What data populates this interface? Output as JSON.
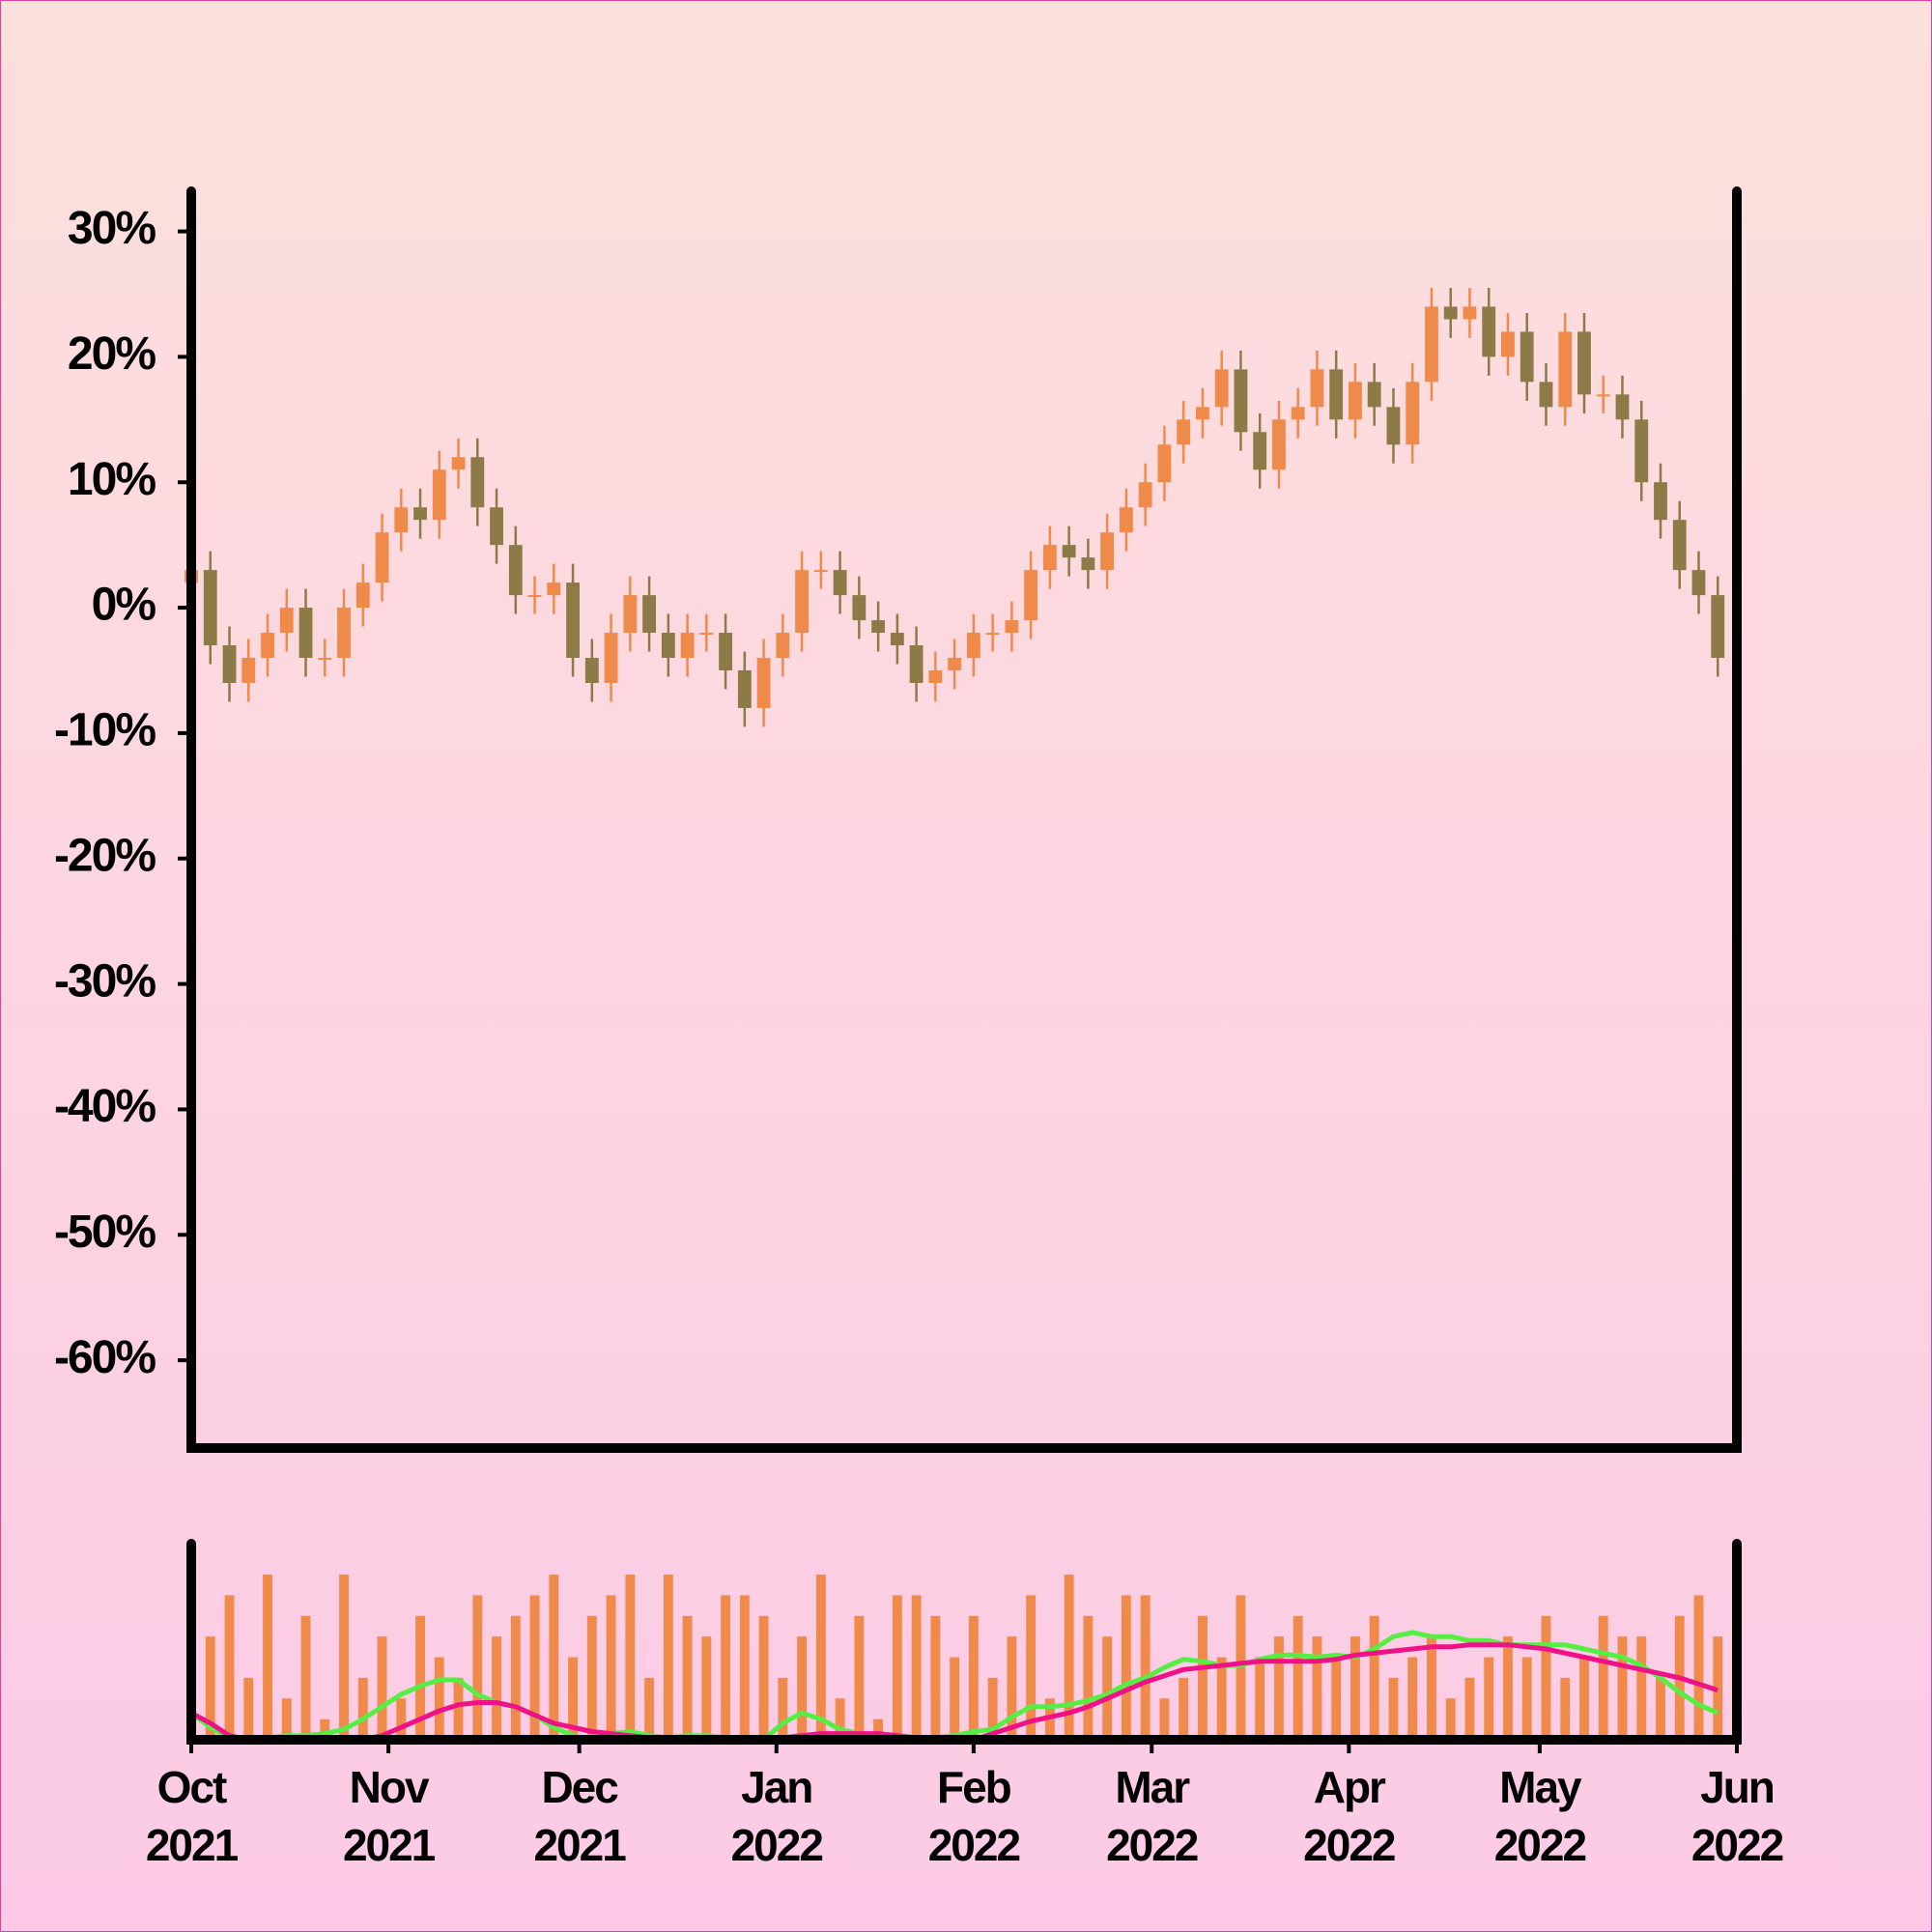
{
  "chart_data": [
    {
      "type": "candlestick",
      "x": [
        0,
        3,
        6,
        9,
        12,
        15,
        18,
        21,
        24,
        27,
        30,
        33,
        36,
        39,
        42,
        45,
        48,
        51,
        54,
        57,
        60,
        63,
        66,
        69,
        72,
        75,
        78,
        81,
        84,
        87,
        90,
        93,
        96,
        99,
        102,
        105,
        108,
        111,
        114,
        117,
        120,
        123,
        126,
        129,
        132,
        135,
        138,
        141,
        144,
        147,
        150,
        153,
        156,
        159,
        162,
        165,
        168,
        171,
        174,
        177,
        180,
        183,
        186,
        189,
        192,
        195,
        198,
        201,
        204,
        207,
        210,
        213,
        216,
        219,
        222,
        225,
        228,
        231,
        234,
        237,
        240
      ],
      "open": [
        2,
        3,
        -3,
        -6,
        -4,
        -2,
        0,
        -4,
        -4,
        0,
        2,
        6,
        8,
        7,
        11,
        12,
        8,
        5,
        1,
        1,
        2,
        -4,
        -6,
        -2,
        1,
        -2,
        -4,
        -2,
        -2,
        -5,
        -8,
        -4,
        -2,
        3,
        3,
        1,
        -1,
        -2,
        -3,
        -6,
        -5,
        -4,
        -2,
        -2,
        -1,
        3,
        5,
        4,
        3,
        6,
        8,
        10,
        13,
        15,
        16,
        19,
        14,
        11,
        15,
        16,
        19,
        15,
        18,
        16,
        13,
        18,
        24,
        23,
        24,
        20,
        22,
        18,
        16,
        22,
        17,
        17,
        15,
        10,
        7,
        3,
        1
      ],
      "high": [
        4.5,
        4.5,
        -1.5,
        -2.5,
        -0.5,
        1.5,
        1.5,
        -2.5,
        1.5,
        3.5,
        7.5,
        9.5,
        9.5,
        12.5,
        13.5,
        13.5,
        9.5,
        6.5,
        2.5,
        3.5,
        3.5,
        -2.5,
        -0.5,
        2.5,
        2.5,
        -0.5,
        -0.5,
        -0.5,
        -0.5,
        -3.5,
        -2.5,
        -0.5,
        4.5,
        4.5,
        4.5,
        2.5,
        0.5,
        -0.5,
        -1.5,
        -3.5,
        -2.5,
        -0.5,
        -0.5,
        0.5,
        4.5,
        6.5,
        6.5,
        5.5,
        7.5,
        9.5,
        11.5,
        14.5,
        16.5,
        17.5,
        20.5,
        20.5,
        15.5,
        16.5,
        17.5,
        20.5,
        20.5,
        19.5,
        19.5,
        17.5,
        19.5,
        25.5,
        25.5,
        25.5,
        25.5,
        23.5,
        23.5,
        19.5,
        23.5,
        23.5,
        18.5,
        18.5,
        16.5,
        11.5,
        8.5,
        4.5,
        2.5
      ],
      "low": [
        0.5,
        -4.5,
        -7.5,
        -7.5,
        -5.5,
        -3.5,
        -5.5,
        -5.5,
        -5.5,
        -1.5,
        0.5,
        4.5,
        5.5,
        5.5,
        9.5,
        6.5,
        3.5,
        -0.5,
        -0.5,
        -0.5,
        -5.5,
        -7.5,
        -7.5,
        -3.5,
        -3.5,
        -5.5,
        -5.5,
        -3.5,
        -6.5,
        -9.5,
        -9.5,
        -5.5,
        -3.5,
        1.5,
        -0.5,
        -2.5,
        -3.5,
        -4.5,
        -7.5,
        -7.5,
        -6.5,
        -5.5,
        -3.5,
        -3.5,
        -2.5,
        1.5,
        2.5,
        1.5,
        1.5,
        4.5,
        6.5,
        8.5,
        11.5,
        13.5,
        14.5,
        12.5,
        9.5,
        9.5,
        13.5,
        14.5,
        13.5,
        13.5,
        14.5,
        11.5,
        11.5,
        16.5,
        21.5,
        21.5,
        18.5,
        18.5,
        16.5,
        14.5,
        14.5,
        15.5,
        15.5,
        13.5,
        8.5,
        5.5,
        1.5,
        -0.5,
        -5.5
      ],
      "close": [
        3,
        -3,
        -6,
        -4,
        -2,
        0,
        -4,
        -4,
        0,
        2,
        6,
        8,
        7,
        11,
        12,
        8,
        5,
        1,
        1,
        2,
        -4,
        -6,
        -2,
        1,
        -2,
        -4,
        -2,
        -2,
        -5,
        -8,
        -4,
        -2,
        3,
        3,
        1,
        -1,
        -2,
        -3,
        -6,
        -5,
        -4,
        -2,
        -2,
        -1,
        3,
        5,
        4,
        3,
        6,
        8,
        10,
        13,
        15,
        16,
        19,
        14,
        11,
        15,
        16,
        19,
        15,
        18,
        16,
        13,
        18,
        24,
        23,
        24,
        20,
        22,
        18,
        16,
        22,
        17,
        17,
        15,
        10,
        7,
        3,
        1,
        -4
      ],
      "up_color": "#f08a4b",
      "down_color": "#8c7b47",
      "xlim": [
        0,
        243
      ],
      "ylim": [
        -67,
        33.2
      ],
      "yticks": [
        {
          "value": -60,
          "label": "-60%"
        },
        {
          "value": -50,
          "label": "-50%"
        },
        {
          "value": -40,
          "label": "-40%"
        },
        {
          "value": -30,
          "label": "-30%"
        },
        {
          "value": -20,
          "label": "-20%"
        },
        {
          "value": -10,
          "label": "-10%"
        },
        {
          "value": 0,
          "label": "0%"
        },
        {
          "value": 10,
          "label": "10%"
        },
        {
          "value": 20,
          "label": "20%"
        },
        {
          "value": 30,
          "label": "30%"
        }
      ]
    },
    {
      "type": "bar",
      "x": [
        0,
        3,
        6,
        9,
        12,
        15,
        18,
        21,
        24,
        27,
        30,
        33,
        36,
        39,
        42,
        45,
        48,
        51,
        54,
        57,
        60,
        63,
        66,
        69,
        72,
        75,
        78,
        81,
        84,
        87,
        90,
        93,
        96,
        99,
        102,
        105,
        108,
        111,
        114,
        117,
        120,
        123,
        126,
        129,
        132,
        135,
        138,
        141,
        144,
        147,
        150,
        153,
        156,
        159,
        162,
        165,
        168,
        171,
        174,
        177,
        180,
        183,
        186,
        189,
        192,
        195,
        198,
        201,
        204,
        207,
        210,
        213,
        216,
        219,
        222,
        225,
        228,
        231,
        234,
        237,
        240
      ],
      "series": [
        {
          "type": "bar",
          "color": "#f08a4b",
          "values": [
            4,
            5,
            7,
            3,
            8,
            2,
            6,
            1,
            8,
            3,
            5,
            2,
            6,
            4,
            3,
            7,
            5,
            6,
            7,
            8,
            4,
            6,
            7,
            8,
            3,
            8,
            6,
            5,
            7,
            7,
            6,
            3,
            5,
            8,
            2,
            6,
            1,
            7,
            7,
            6,
            4,
            6,
            3,
            5,
            7,
            2,
            8,
            6,
            5,
            7,
            7,
            2,
            3,
            6,
            4,
            7,
            4,
            5,
            6,
            5,
            4,
            5,
            6,
            3,
            4,
            5,
            2,
            3,
            4,
            5,
            4,
            6,
            3,
            4,
            6,
            5,
            5,
            3,
            6,
            7,
            5
          ]
        },
        {
          "type": "line",
          "color": "#55ee44",
          "values": [
            1.3,
            0.6,
            0.1,
            0,
            0.1,
            0.2,
            0.2,
            0.3,
            0.5,
            1.0,
            1.6,
            2.2,
            2.6,
            2.9,
            2.9,
            2.2,
            1.8,
            1.6,
            1.2,
            0.6,
            0.2,
            0,
            0.3,
            0.4,
            0.2,
            0.1,
            0.2,
            0.2,
            0.1,
            0,
            0,
            0.8,
            1.3,
            1.0,
            0.5,
            0.3,
            0.1,
            0,
            0,
            0.1,
            0.2,
            0.4,
            0.5,
            1.1,
            1.6,
            1.6,
            1.7,
            1.9,
            2.2,
            2.7,
            3.0,
            3.5,
            3.9,
            3.8,
            3.6,
            3.6,
            3.9,
            4.1,
            4.1,
            4.0,
            4.1,
            4.0,
            4.4,
            5.0,
            5.2,
            5.0,
            5.0,
            4.8,
            4.8,
            4.6,
            4.6,
            4.6,
            4.6,
            4.4,
            4.2,
            4.0,
            3.6,
            3.0,
            2.3,
            1.7,
            1.3
          ]
        },
        {
          "type": "line",
          "color": "#ee1188",
          "values": [
            1.3,
            0.8,
            0.2,
            0,
            0,
            0,
            0,
            0,
            0,
            0,
            0.2,
            0.6,
            1.0,
            1.4,
            1.7,
            1.8,
            1.8,
            1.6,
            1.2,
            0.8,
            0.6,
            0.4,
            0.3,
            0.2,
            0.1,
            0,
            0,
            0,
            0,
            0,
            0,
            0.1,
            0.2,
            0.3,
            0.3,
            0.3,
            0.3,
            0.2,
            0.1,
            0,
            0,
            0,
            0.3,
            0.6,
            0.9,
            1.1,
            1.3,
            1.6,
            2.0,
            2.4,
            2.8,
            3.1,
            3.4,
            3.5,
            3.6,
            3.7,
            3.8,
            3.8,
            3.8,
            3.8,
            3.9,
            4.1,
            4.2,
            4.3,
            4.4,
            4.5,
            4.5,
            4.6,
            4.6,
            4.6,
            4.5,
            4.4,
            4.2,
            4.0,
            3.8,
            3.6,
            3.4,
            3.2,
            3.0,
            2.7,
            2.4
          ]
        }
      ],
      "xlim": [
        0,
        243
      ],
      "ylim": [
        0,
        9.5
      ],
      "xticks": [
        {
          "value": 0,
          "label": "Oct 2021"
        },
        {
          "value": 31,
          "label": "Nov 2021"
        },
        {
          "value": 61,
          "label": "Dec 2021"
        },
        {
          "value": 92,
          "label": "Jan 2022"
        },
        {
          "value": 123,
          "label": "Feb 2022"
        },
        {
          "value": 151,
          "label": "Mar 2022"
        },
        {
          "value": 182,
          "label": "Apr 2022"
        },
        {
          "value": 212,
          "label": "May 2022"
        },
        {
          "value": 243,
          "label": "Jun 2022"
        }
      ]
    }
  ]
}
